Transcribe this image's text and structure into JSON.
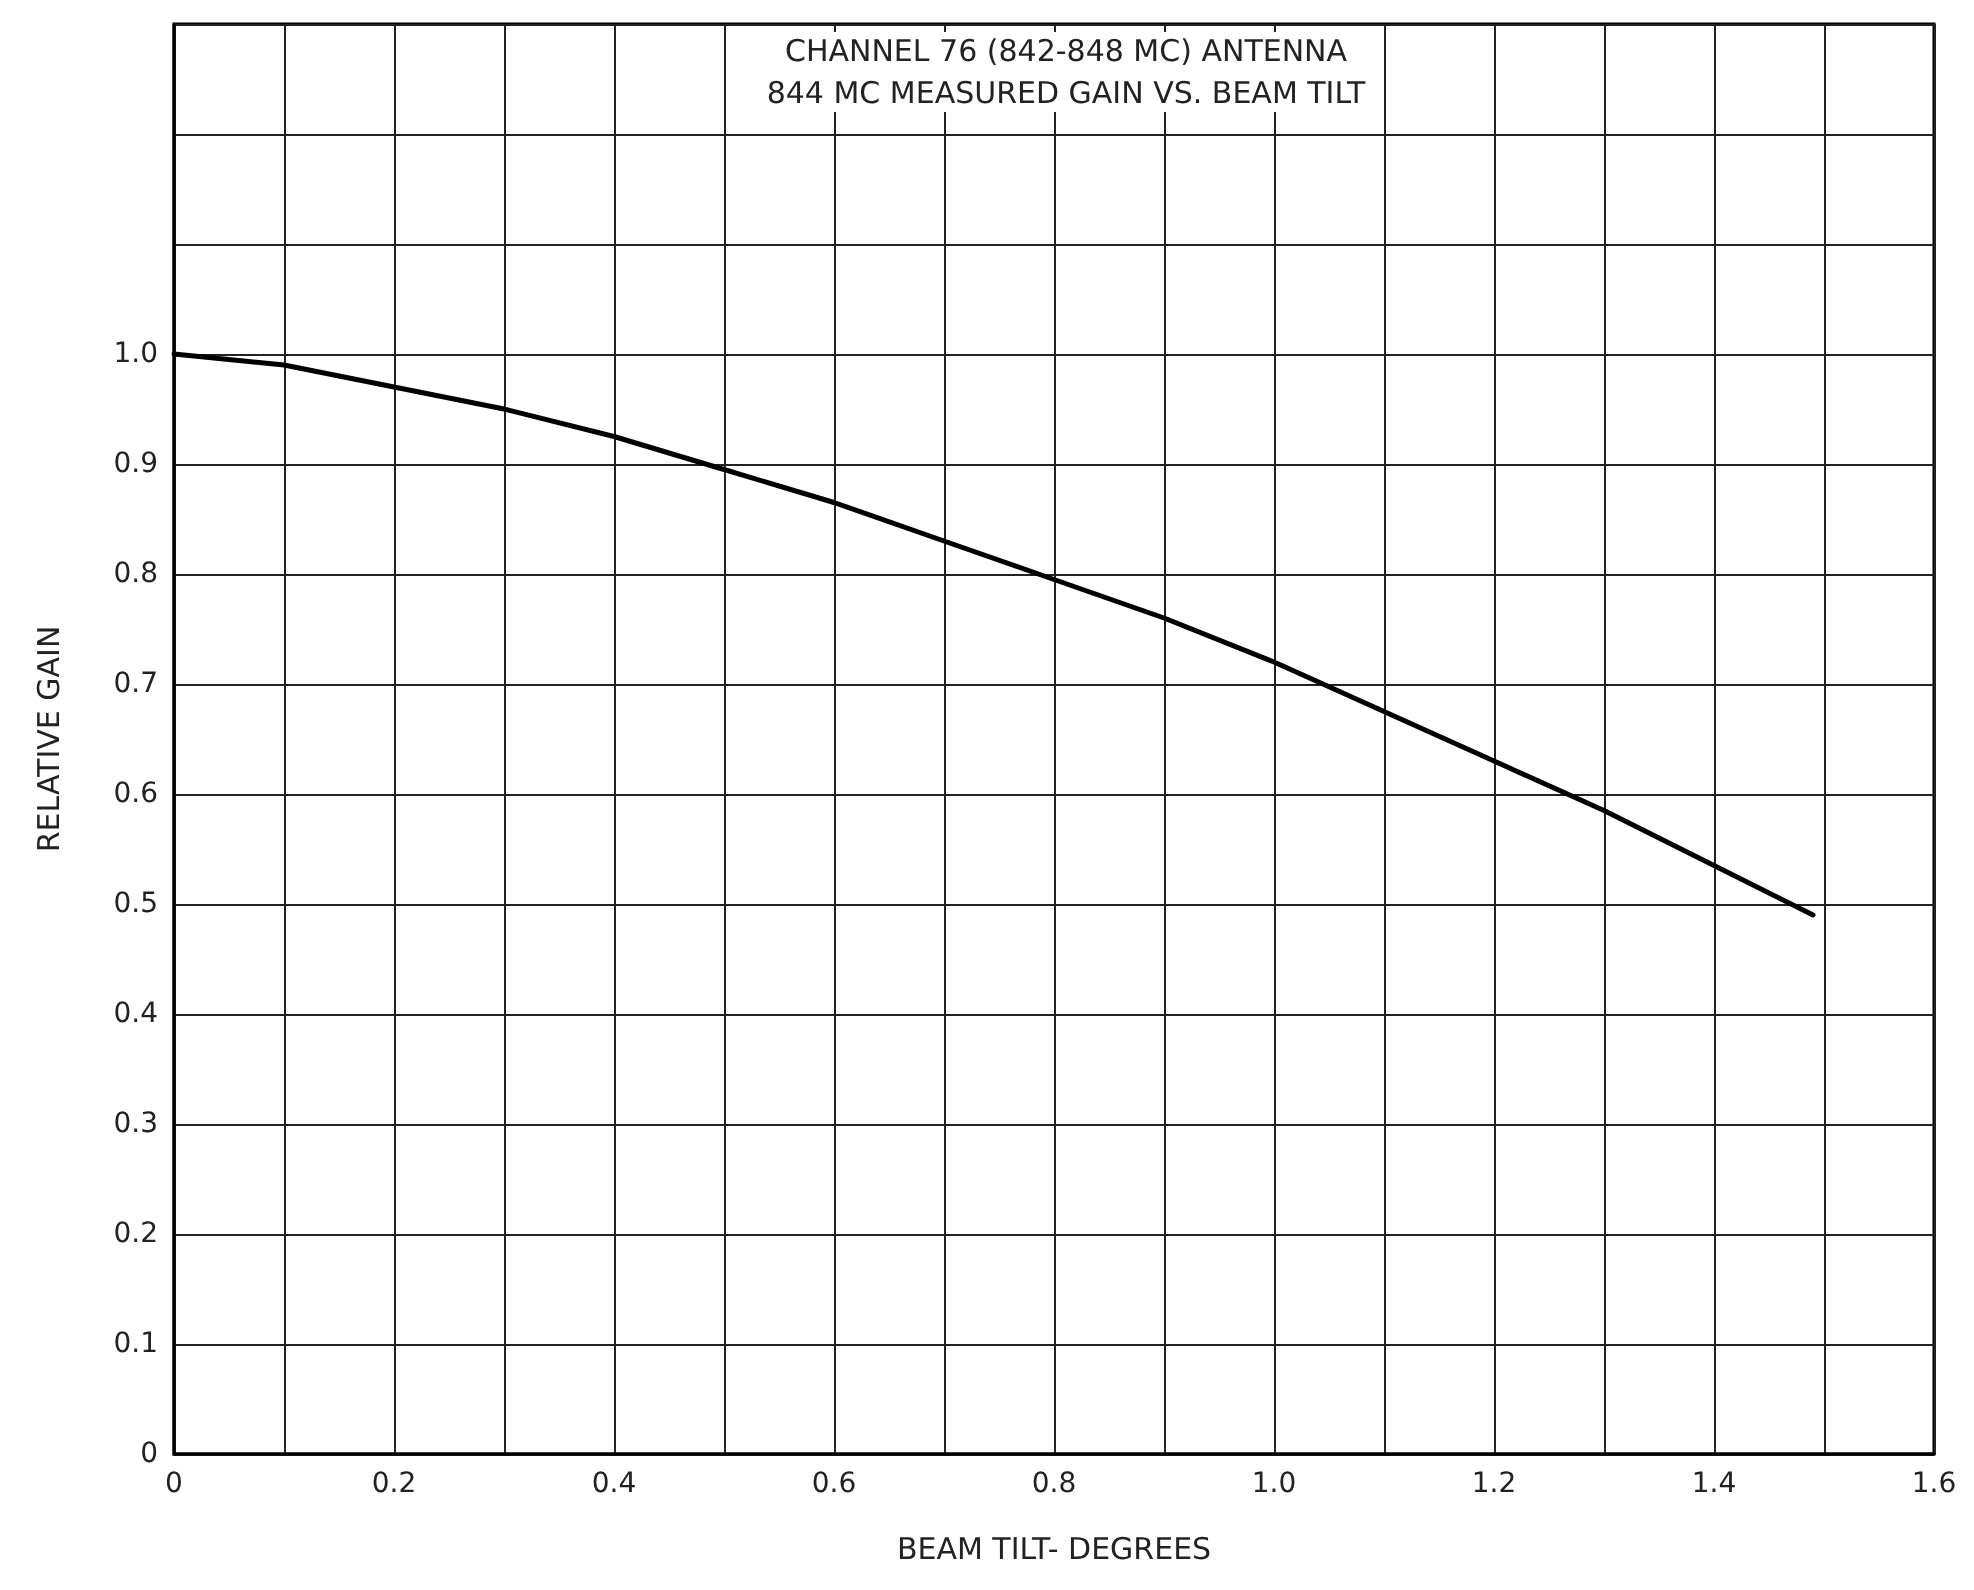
{
  "chart_data": {
    "type": "line",
    "title": "CHANNEL 76 (842-848 MC) ANTENNA",
    "subtitle": "844 MC MEASURED GAIN VS. BEAM TILT",
    "xlabel": "BEAM TILT- DEGREES",
    "ylabel": "RELATIVE GAIN",
    "x": [
      0,
      0.1,
      0.2,
      0.3,
      0.4,
      0.5,
      0.6,
      0.7,
      0.8,
      0.9,
      1.0,
      1.1,
      1.2,
      1.3,
      1.4,
      1.49
    ],
    "series": [
      {
        "color": "#000000",
        "values": [
          1.0,
          0.99,
          0.97,
          0.95,
          0.925,
          0.895,
          0.865,
          0.83,
          0.795,
          0.76,
          0.72,
          0.675,
          0.63,
          0.585,
          0.535,
          0.49
        ]
      }
    ],
    "xlim": [
      0,
      1.6
    ],
    "xticks": [
      0,
      {
        "value": 0.1,
        "label": null
      },
      0.2,
      {
        "value": 0.3,
        "label": null
      },
      0.4,
      {
        "value": 0.5,
        "label": null
      },
      0.6,
      {
        "value": 0.7,
        "label": null
      },
      0.8,
      {
        "value": 0.9,
        "label": null
      },
      {
        "value": 1.0,
        "label": "1.0"
      },
      {
        "value": 1.1,
        "label": null
      },
      1.2,
      {
        "value": 1.3,
        "label": null
      },
      1.4,
      {
        "value": 1.5,
        "label": null
      },
      1.6
    ],
    "ylim": [
      0,
      1.3
    ],
    "yticks": [
      0,
      0.1,
      0.2,
      0.3,
      0.4,
      0.5,
      0.6,
      0.7,
      0.8,
      0.9,
      {
        "value": 1.0,
        "label": "1.0"
      },
      {
        "value": 1.1,
        "label": null
      },
      {
        "value": 1.2,
        "label": null
      },
      {
        "value": 1.3,
        "label": null
      }
    ],
    "grid": true,
    "marker": "none",
    "line_style": "solid"
  }
}
